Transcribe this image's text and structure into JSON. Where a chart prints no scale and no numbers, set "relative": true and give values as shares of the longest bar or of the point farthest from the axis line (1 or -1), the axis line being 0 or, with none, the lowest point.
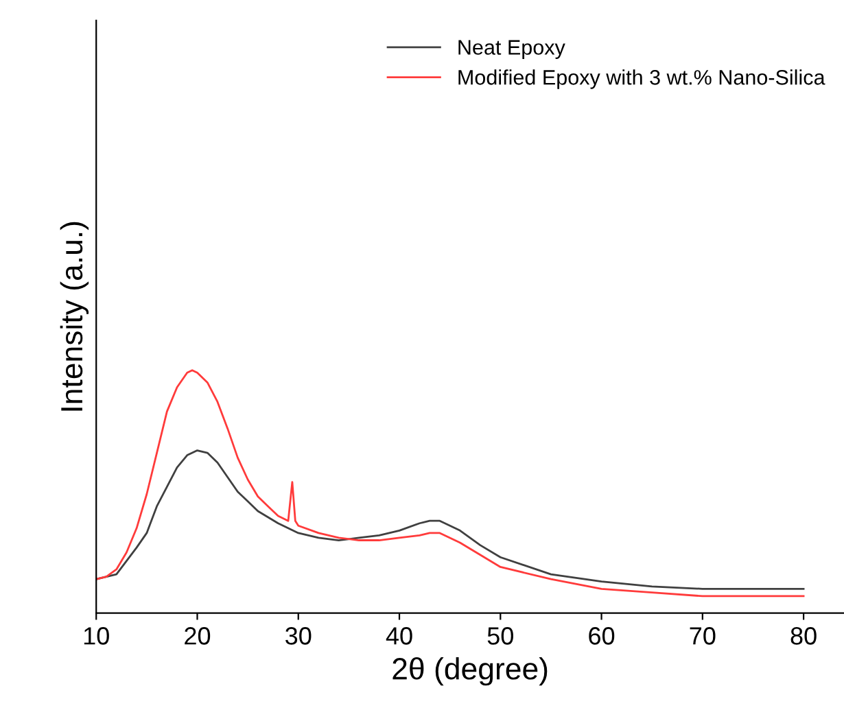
{
  "chart_data": {
    "type": "line",
    "xlabel": "2θ (degree)",
    "ylabel": "Intensity (a.u.)",
    "relative": true,
    "xlim": [
      10,
      84
    ],
    "xticks": [
      10,
      20,
      30,
      40,
      50,
      60,
      70,
      80
    ],
    "legend": "top right",
    "grid": false,
    "marker": "none",
    "line_style": "solid",
    "series": [
      {
        "name": "Neat Epoxy",
        "color": "#404040",
        "x": [
          10,
          12,
          14,
          15,
          16,
          17,
          18,
          19,
          20,
          21,
          22,
          23,
          24,
          25,
          26,
          28,
          30,
          32,
          34,
          36,
          38,
          40,
          42,
          43,
          44,
          46,
          48,
          50,
          55,
          60,
          65,
          70,
          75,
          80
        ],
        "values": [
          0.14,
          0.16,
          0.27,
          0.33,
          0.44,
          0.52,
          0.6,
          0.65,
          0.67,
          0.66,
          0.62,
          0.56,
          0.5,
          0.46,
          0.42,
          0.37,
          0.33,
          0.31,
          0.3,
          0.31,
          0.32,
          0.34,
          0.37,
          0.38,
          0.38,
          0.34,
          0.28,
          0.23,
          0.16,
          0.13,
          0.11,
          0.1,
          0.1,
          0.1
        ]
      },
      {
        "name": "Modified Epoxy with 3 wt.% Nano-Silica",
        "color": "#ff3b3b",
        "x": [
          10,
          11,
          12,
          13,
          14,
          15,
          16,
          17,
          18,
          19,
          19.5,
          20,
          21,
          22,
          23,
          24,
          25,
          26,
          27,
          28,
          29,
          29.4,
          29.7,
          30,
          32,
          34,
          36,
          38,
          40,
          42,
          43,
          44,
          46,
          48,
          50,
          55,
          60,
          65,
          70,
          75,
          80
        ],
        "values": [
          0.14,
          0.15,
          0.18,
          0.25,
          0.35,
          0.49,
          0.66,
          0.83,
          0.93,
          0.99,
          1.0,
          0.99,
          0.95,
          0.87,
          0.76,
          0.64,
          0.55,
          0.48,
          0.44,
          0.4,
          0.38,
          0.54,
          0.38,
          0.36,
          0.33,
          0.31,
          0.3,
          0.3,
          0.31,
          0.32,
          0.33,
          0.33,
          0.29,
          0.24,
          0.19,
          0.14,
          0.1,
          0.085,
          0.07,
          0.07,
          0.07
        ]
      }
    ]
  }
}
